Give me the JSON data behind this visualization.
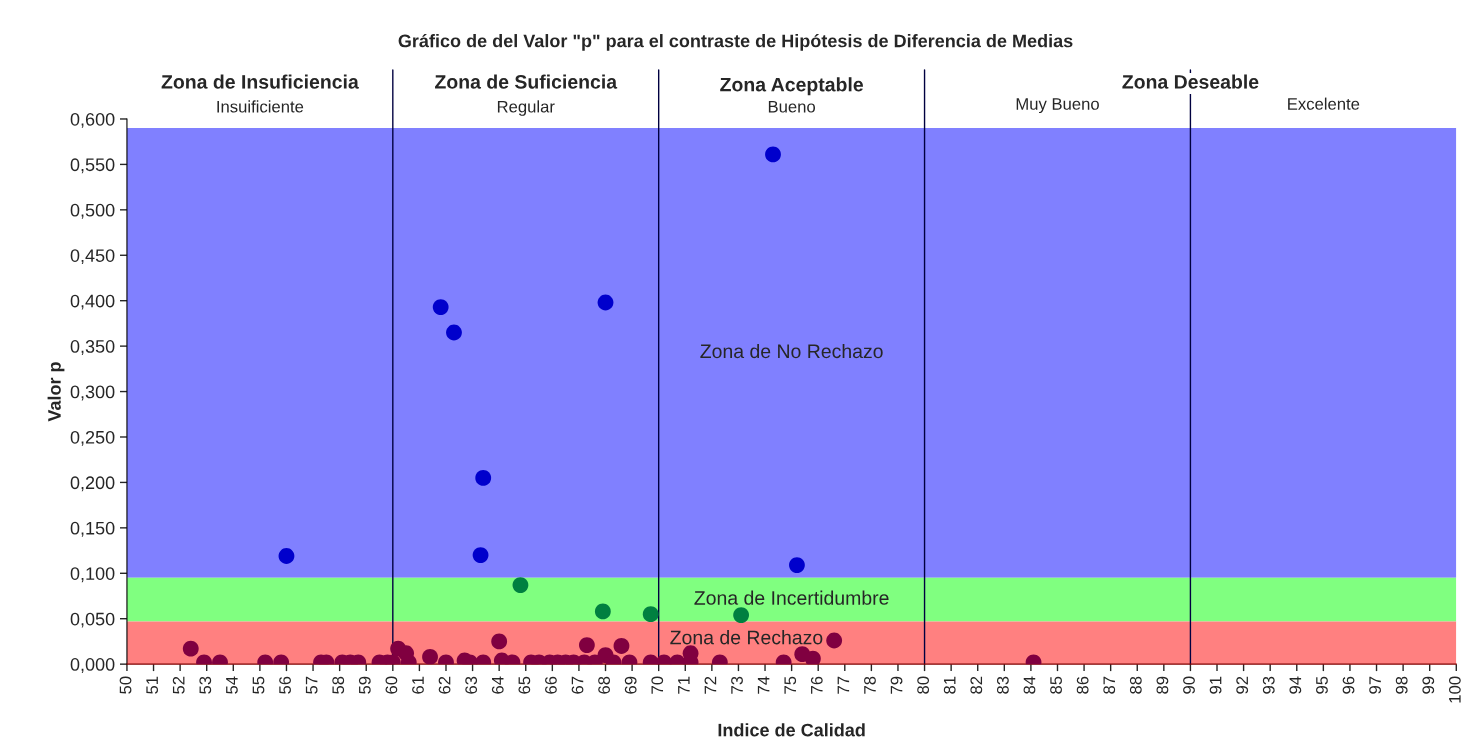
{
  "chart_data": {
    "type": "scatter",
    "title": "Gráfico de del Valor \"p\" para el contraste de Hipótesis de Diferencia de Medias",
    "xlabel": "Indice de Calidad",
    "ylabel": "Valor p",
    "series": [
      {
        "color": "#0000cc",
        "x": [
          56.0,
          61.8,
          62.3,
          63.4,
          63.3,
          68.0,
          74.3,
          75.2
        ],
        "values": [
          0.119,
          0.393,
          0.365,
          0.205,
          0.12,
          0.398,
          0.561,
          0.109
        ]
      },
      {
        "color": "#008040",
        "x": [
          64.8,
          67.9,
          69.7,
          73.1
        ],
        "values": [
          0.087,
          0.058,
          0.055,
          0.054
        ]
      },
      {
        "color": "#800040",
        "x": [
          52.4,
          52.9,
          53.5,
          55.2,
          55.8,
          57.3,
          57.5,
          58.1,
          58.4,
          58.7,
          59.5,
          59.8,
          60.0,
          60.2,
          60.5,
          60.6,
          61.4,
          62.0,
          62.7,
          62.9,
          63.4,
          64.0,
          64.1,
          64.5,
          65.2,
          65.5,
          65.9,
          66.2,
          66.5,
          66.8,
          67.2,
          67.6,
          67.3,
          68.0,
          68.3,
          68.9,
          68.6,
          69.7,
          70.2,
          70.7,
          71.2,
          71.2,
          72.3,
          74.7,
          75.4,
          75.8,
          76.6,
          84.1
        ],
        "values": [
          0.017,
          0.002,
          0.002,
          0.002,
          0.002,
          0.002,
          0.002,
          0.002,
          0.002,
          0.002,
          0.002,
          0.002,
          0.002,
          0.017,
          0.012,
          0.002,
          0.008,
          0.002,
          0.004,
          0.002,
          0.002,
          0.025,
          0.004,
          0.002,
          0.002,
          0.002,
          0.002,
          0.002,
          0.002,
          0.002,
          0.002,
          0.002,
          0.021,
          0.01,
          0.002,
          0.002,
          0.02,
          0.002,
          0.002,
          0.002,
          0.012,
          0.002,
          0.002,
          0.002,
          0.011,
          0.006,
          0.026,
          0.002
        ]
      }
    ],
    "marker": "circle",
    "grid": false,
    "legend": false,
    "xlim": [
      50,
      100
    ],
    "xticks": [
      50,
      51,
      52,
      53,
      54,
      55,
      56,
      57,
      58,
      59,
      60,
      61,
      62,
      63,
      64,
      65,
      66,
      67,
      68,
      69,
      70,
      71,
      72,
      73,
      74,
      75,
      76,
      77,
      78,
      79,
      80,
      81,
      82,
      83,
      84,
      85,
      86,
      87,
      88,
      89,
      90,
      91,
      92,
      93,
      94,
      95,
      96,
      97,
      98,
      99,
      100
    ],
    "ylim": [
      0,
      0.6
    ],
    "yticks": [
      {
        "value": 0,
        "label": "0,000"
      },
      {
        "value": 0.05,
        "label": "0,050"
      },
      {
        "value": 0.1,
        "label": "0,100"
      },
      {
        "value": 0.15,
        "label": "0,150"
      },
      {
        "value": 0.2,
        "label": "0,200"
      },
      {
        "value": 0.25,
        "label": "0,250"
      },
      {
        "value": 0.3,
        "label": "0,300"
      },
      {
        "value": 0.35,
        "label": "0,350"
      },
      {
        "value": 0.4,
        "label": "0,400"
      },
      {
        "value": 0.45,
        "label": "0,450"
      },
      {
        "value": 0.5,
        "label": "0,500"
      },
      {
        "value": 0.55,
        "label": "0,550"
      },
      {
        "value": 0.6,
        "label": "0,600"
      }
    ],
    "bands": [
      {
        "axis": "y",
        "from": 0.095,
        "to": 0.59,
        "label": "Zona de No Rechazo",
        "color": "#8080ff"
      },
      {
        "axis": "y",
        "from": 0.047,
        "to": 0.095,
        "label": "Zona de Incertidumbre",
        "color": "#80ff80"
      },
      {
        "axis": "y",
        "from": 0,
        "to": 0.047,
        "label": "Zona de Rechazo",
        "color": "#ff8080"
      }
    ],
    "ref_lines": [
      {
        "axis": "x",
        "value": 60,
        "color": "#000040"
      },
      {
        "axis": "x",
        "value": 70,
        "color": "#000040"
      },
      {
        "axis": "x",
        "value": 80,
        "color": "#000040"
      },
      {
        "axis": "x",
        "value": 90,
        "color": "#000040"
      }
    ],
    "annotations": [
      "Zona de Insuficiencia",
      "Zona de Suficiencia",
      "Zona Aceptable",
      "Zona Deseable",
      "Insuificiente",
      "Regular",
      "Bueno",
      "Muy Bueno",
      "Excelente"
    ]
  }
}
